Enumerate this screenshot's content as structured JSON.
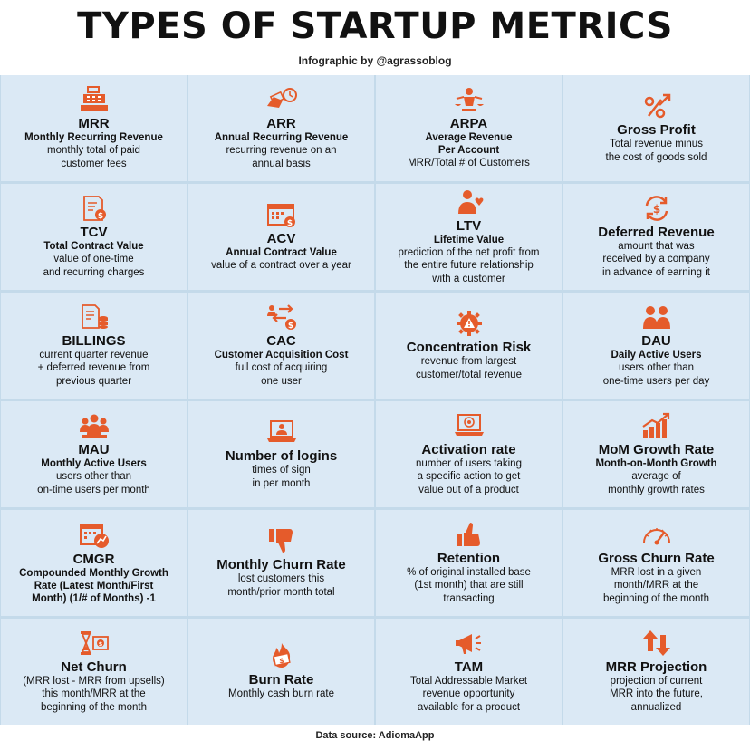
{
  "title": "TYPES OF STARTUP METRICS",
  "subtitle": "Infographic by @agrassoblog",
  "footer": "Data source: AdiomaApp",
  "accent_color": "#e55b2b",
  "cards": [
    {
      "icon": "cash-register-icon",
      "name": "MRR",
      "sub": "Monthly Recurring Revenue",
      "desc": "monthly total of paid\ncustomer fees"
    },
    {
      "icon": "money-clock-icon",
      "name": "ARR",
      "sub": "Annual Recurring Revenue",
      "desc": "recurring revenue on an\nannual basis"
    },
    {
      "icon": "balance-person-icon",
      "name": "ARPA",
      "sub": "Average Revenue\nPer Account",
      "desc": "MRR/Total # of Customers"
    },
    {
      "icon": "percent-arrow-icon",
      "name": "Gross Profit",
      "sub": "",
      "desc": "Total revenue minus\nthe cost of goods sold"
    },
    {
      "icon": "contract-dollar-icon",
      "name": "TCV",
      "sub": "Total Contract Value",
      "desc": "value of one-time\nand recurring charges"
    },
    {
      "icon": "calendar-dollar-icon",
      "name": "ACV",
      "sub": "Annual Contract Value",
      "desc": "value of a contract over a year"
    },
    {
      "icon": "person-heart-icon",
      "name": "LTV",
      "sub": "Lifetime Value",
      "desc": "prediction of the net profit from\nthe entire future relationship\nwith a customer"
    },
    {
      "icon": "dollar-cycle-icon",
      "name": "Deferred Revenue",
      "sub": "",
      "desc": "amount that was\nreceived by a company\nin advance of earning it"
    },
    {
      "icon": "document-coins-icon",
      "name": "BILLINGS",
      "sub": "",
      "desc": "current quarter revenue\n+ deferred revenue from\nprevious quarter"
    },
    {
      "icon": "exchange-arrows-icon",
      "name": "CAC",
      "sub": "Customer Acquisition Cost",
      "desc": "full cost of acquiring\none user"
    },
    {
      "icon": "gear-warning-icon",
      "name": "Concentration Risk",
      "sub": "",
      "desc": "revenue from largest\ncustomer/total revenue"
    },
    {
      "icon": "two-users-icon",
      "name": "DAU",
      "sub": "Daily Active Users",
      "desc": "users other than\none-time users per day"
    },
    {
      "icon": "user-group-icon",
      "name": "MAU",
      "sub": "Monthly Active Users",
      "desc": "users other than\non-time users per month"
    },
    {
      "icon": "laptop-user-icon",
      "name": "Number of logins",
      "sub": "",
      "desc": "times of sign\nin per month"
    },
    {
      "icon": "laptop-target-icon",
      "name": "Activation rate",
      "sub": "",
      "desc": "number of users taking\na specific action to get\nvalue out of a product"
    },
    {
      "icon": "growth-chart-icon",
      "name": "MoM Growth Rate",
      "sub": "Month-on-Month Growth",
      "desc": "average of\nmonthly growth rates"
    },
    {
      "icon": "calendar-chart-icon",
      "name": "CMGR",
      "sub": "Compounded Monthly Growth\nRate (Latest Month/First\nMonth) (1/# of Months) -1",
      "desc": ""
    },
    {
      "icon": "thumbs-down-icon",
      "name": "Monthly Churn Rate",
      "sub": "",
      "desc": "lost customers this\nmonth/prior month total"
    },
    {
      "icon": "thumbs-up-icon",
      "name": "Retention",
      "sub": "",
      "desc": "% of original installed base\n(1st month) that are still\ntransacting"
    },
    {
      "icon": "gauge-icon",
      "name": "Gross Churn Rate",
      "sub": "",
      "desc": "MRR lost in a given\nmonth/MRR at the\nbeginning of the month"
    },
    {
      "icon": "hourglass-dollar-icon",
      "name": "Net Churn",
      "sub": "",
      "desc": "(MRR lost - MRR from upsells)\nthis month/MRR at the\nbeginning of the month"
    },
    {
      "icon": "burning-money-icon",
      "name": "Burn Rate",
      "sub": "",
      "desc": "Monthly cash burn rate"
    },
    {
      "icon": "megaphone-icon",
      "name": "TAM",
      "sub": "",
      "desc": "Total Addressable Market\nrevenue opportunity\navailable for a product"
    },
    {
      "icon": "up-down-arrows-icon",
      "name": "MRR Projection",
      "sub": "",
      "desc": "projection of current\nMRR into the future,\nannualized"
    }
  ]
}
